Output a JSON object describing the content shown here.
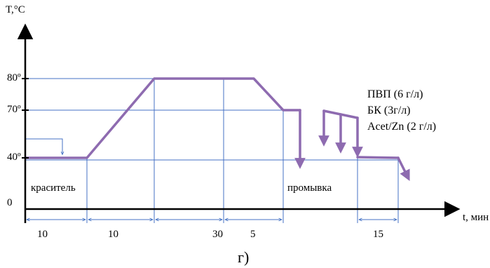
{
  "axes": {
    "y_label": "T,°C",
    "x_label": "t, мин",
    "origin": "0"
  },
  "y_ticks": [
    "80º",
    "70º",
    "40º"
  ],
  "annotations": {
    "dye": "краситель",
    "rinse": "промывка",
    "additives": [
      "ПВП (6 г/л)",
      "БК (3г/л)",
      "Acet/Zn (2 г/л)"
    ]
  },
  "durations": [
    "10",
    "10",
    "30",
    "5",
    "15"
  ],
  "caption": "г)",
  "colors": {
    "profile": "#8E6BB0",
    "guides": "#4472C4",
    "axis": "#000000"
  }
}
